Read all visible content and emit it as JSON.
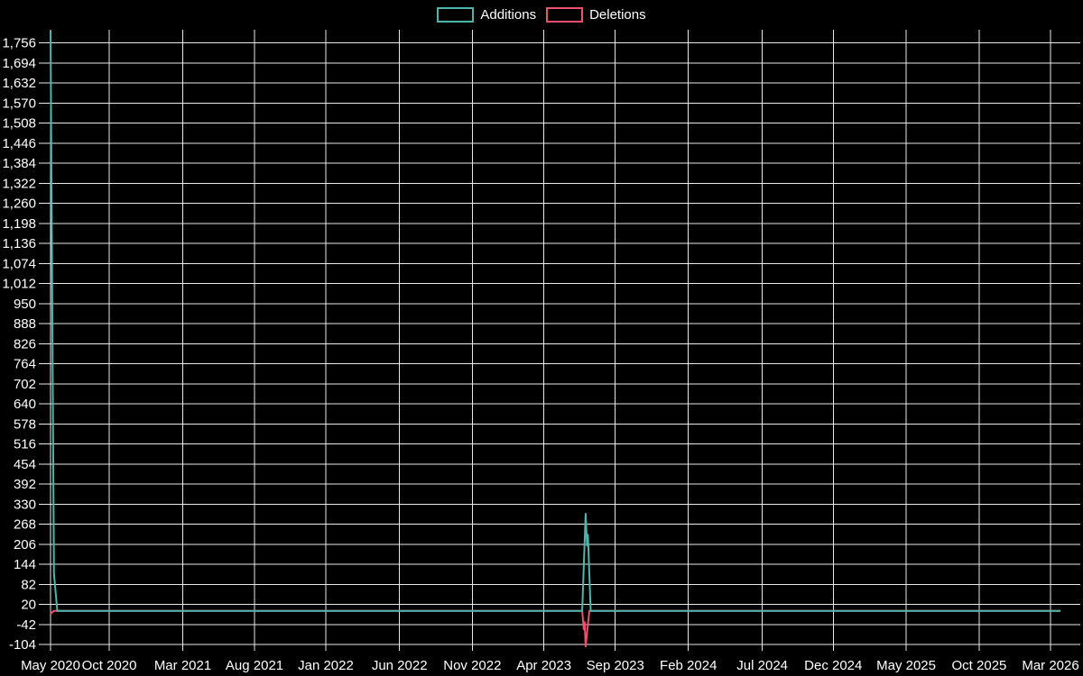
{
  "legend": {
    "items": [
      {
        "label": "Additions",
        "color": "#4db6ac"
      },
      {
        "label": "Deletions",
        "color": "#ee5170"
      }
    ]
  },
  "colors": {
    "background": "#000000",
    "grid": "#e8e8e8",
    "text": "#ffffff",
    "additions": "#4db6ac",
    "deletions": "#ee5170"
  },
  "chart_data": {
    "type": "line",
    "title": "",
    "xlabel": "",
    "ylabel": "",
    "legend_position": "top-center",
    "grid": true,
    "y_axis": {
      "min": -104,
      "max": 1756,
      "step": 62,
      "top_edge_value": 1797,
      "bottom_edge_value": -112
    },
    "y_tick_labels": [
      "1,756",
      "1,694",
      "1,632",
      "1,570",
      "1,508",
      "1,446",
      "1,384",
      "1,322",
      "1,260",
      "1,198",
      "1,136",
      "1,074",
      "1,012",
      "950",
      "888",
      "826",
      "764",
      "702",
      "640",
      "578",
      "516",
      "454",
      "392",
      "330",
      "268",
      "206",
      "144",
      "82",
      "20",
      "-42",
      "-104"
    ],
    "x_axis": {
      "start_label": "May 2020",
      "end_label": "Mar 2026"
    },
    "x_ticks": [
      {
        "label": "May 2020",
        "pos": 0.0
      },
      {
        "label": "Oct 2020",
        "pos": 0.057
      },
      {
        "label": "Mar 2021",
        "pos": 0.1284
      },
      {
        "label": "Aug 2021",
        "pos": 0.1981
      },
      {
        "label": "Jan 2022",
        "pos": 0.2673
      },
      {
        "label": "Jun 2022",
        "pos": 0.3389
      },
      {
        "label": "Nov 2022",
        "pos": 0.4096
      },
      {
        "label": "Apr 2023",
        "pos": 0.4791
      },
      {
        "label": "Sep 2023",
        "pos": 0.5484
      },
      {
        "label": "Feb 2024",
        "pos": 0.6194
      },
      {
        "label": "Jul 2024",
        "pos": 0.6912
      },
      {
        "label": "Dec 2024",
        "pos": 0.7601
      },
      {
        "label": "May 2025",
        "pos": 0.8309
      },
      {
        "label": "Oct 2025",
        "pos": 0.9018
      },
      {
        "label": "Mar 2026",
        "pos": 0.9711
      }
    ],
    "series": [
      {
        "name": "Deletions",
        "color": "#ee5170",
        "spike_notes": [
          {
            "approx_date": "May 2020",
            "value": -9
          },
          {
            "approx_date": "Aug 2023",
            "value": -110
          }
        ],
        "points": [
          [
            0,
            -9
          ],
          [
            0.0033,
            0
          ],
          [
            0.5163,
            0
          ],
          [
            0.5178,
            -57
          ],
          [
            0.5187,
            -35
          ],
          [
            0.5196,
            -110
          ],
          [
            0.5232,
            0
          ],
          [
            0.9807,
            0
          ]
        ]
      },
      {
        "name": "Additions",
        "color": "#4db6ac",
        "spike_notes": [
          {
            "approx_date": "May 2020",
            "value": 1794
          },
          {
            "approx_date": "Aug 2023",
            "value": 300
          }
        ],
        "points": [
          [
            0,
            1794
          ],
          [
            0.0033,
            114
          ],
          [
            0.0066,
            0
          ],
          [
            0.5163,
            0
          ],
          [
            0.5196,
            300
          ],
          [
            0.521,
            202
          ],
          [
            0.5218,
            235
          ],
          [
            0.5245,
            0
          ],
          [
            0.9807,
            0
          ]
        ]
      }
    ]
  }
}
